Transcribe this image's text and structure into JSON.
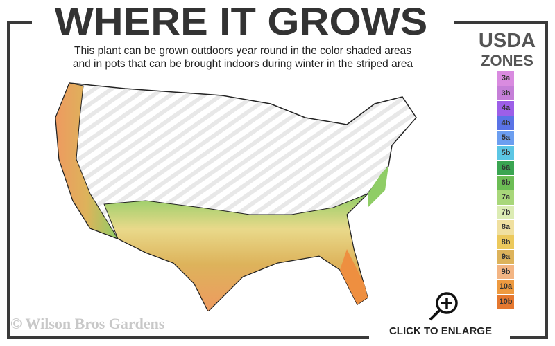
{
  "header": {
    "title": "WHERE IT GROWS",
    "subtitle_line1": "This plant can be grown outdoors year round in the color shaded areas",
    "subtitle_line2": "and in pots that can be brought indoors during winter in the striped area"
  },
  "legend": {
    "title_line1": "USDA",
    "title_line2": "ZONES",
    "zones": [
      {
        "label": "3a",
        "color": "#d98be0"
      },
      {
        "label": "3b",
        "color": "#c57fd8"
      },
      {
        "label": "4a",
        "color": "#9d5fe8"
      },
      {
        "label": "4b",
        "color": "#5a73e6"
      },
      {
        "label": "5a",
        "color": "#6c9ef0"
      },
      {
        "label": "5b",
        "color": "#5cc6e4"
      },
      {
        "label": "6a",
        "color": "#3aa551"
      },
      {
        "label": "6b",
        "color": "#6cbd55"
      },
      {
        "label": "7a",
        "color": "#a8d77a"
      },
      {
        "label": "7b",
        "color": "#dcecb4"
      },
      {
        "label": "8a",
        "color": "#f0e0a0"
      },
      {
        "label": "8b",
        "color": "#ecc95c"
      },
      {
        "label": "9a",
        "color": "#ddb35b"
      },
      {
        "label": "9b",
        "color": "#f3b583"
      },
      {
        "label": "10a",
        "color": "#ee9a40"
      },
      {
        "label": "10b",
        "color": "#e5782f"
      }
    ]
  },
  "footer": {
    "copyright": "© Wilson Bros Gardens",
    "enlarge_label": "CLICK TO ENLARGE"
  },
  "icons": {
    "enlarge": "zoom-in-magnifier-icon"
  }
}
